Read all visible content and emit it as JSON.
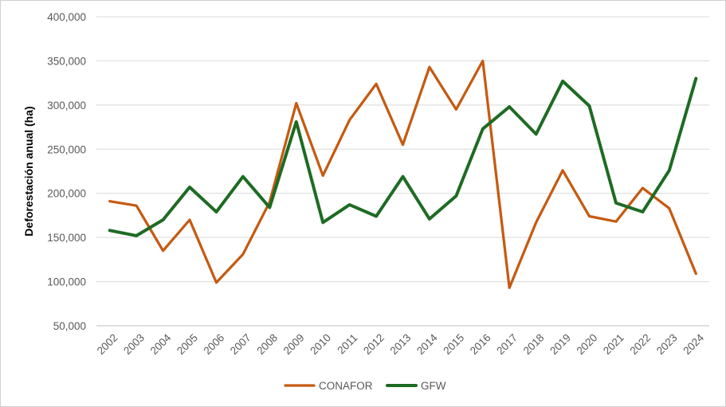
{
  "chart_data": {
    "type": "line",
    "title": "",
    "xlabel": "",
    "ylabel": "Deforestación anual (ha)",
    "ylim": [
      50000,
      400000
    ],
    "yticks": [
      "50,000",
      "100,000",
      "150,000",
      "200,000",
      "250,000",
      "300,000",
      "350,000",
      "400,000"
    ],
    "ytick_values": [
      50000,
      100000,
      150000,
      200000,
      250000,
      300000,
      350000,
      400000
    ],
    "grid": true,
    "legend_position": "bottom",
    "categories": [
      "2002",
      "2003",
      "2004",
      "2005",
      "2006",
      "2007",
      "2008",
      "2009",
      "2010",
      "2011",
      "2012",
      "2013",
      "2014",
      "2015",
      "2016",
      "2017",
      "2018",
      "2019",
      "2020",
      "2021",
      "2022",
      "2023",
      "2024"
    ],
    "series": [
      {
        "name": "CONAFOR",
        "color": "#c55a11",
        "values": [
          191000,
          186000,
          135000,
          170000,
          99000,
          131000,
          190000,
          302000,
          220000,
          283000,
          324000,
          255000,
          343000,
          295000,
          350000,
          93000,
          167000,
          226000,
          174000,
          168000,
          206000,
          183000,
          109000
        ]
      },
      {
        "name": "GFW",
        "color": "#1e6b24",
        "values": [
          158000,
          152000,
          170000,
          207000,
          179000,
          219000,
          184000,
          281000,
          167000,
          187000,
          174000,
          219000,
          171000,
          197000,
          273000,
          298000,
          267000,
          327000,
          299000,
          189000,
          179000,
          226000,
          330000
        ]
      }
    ]
  }
}
